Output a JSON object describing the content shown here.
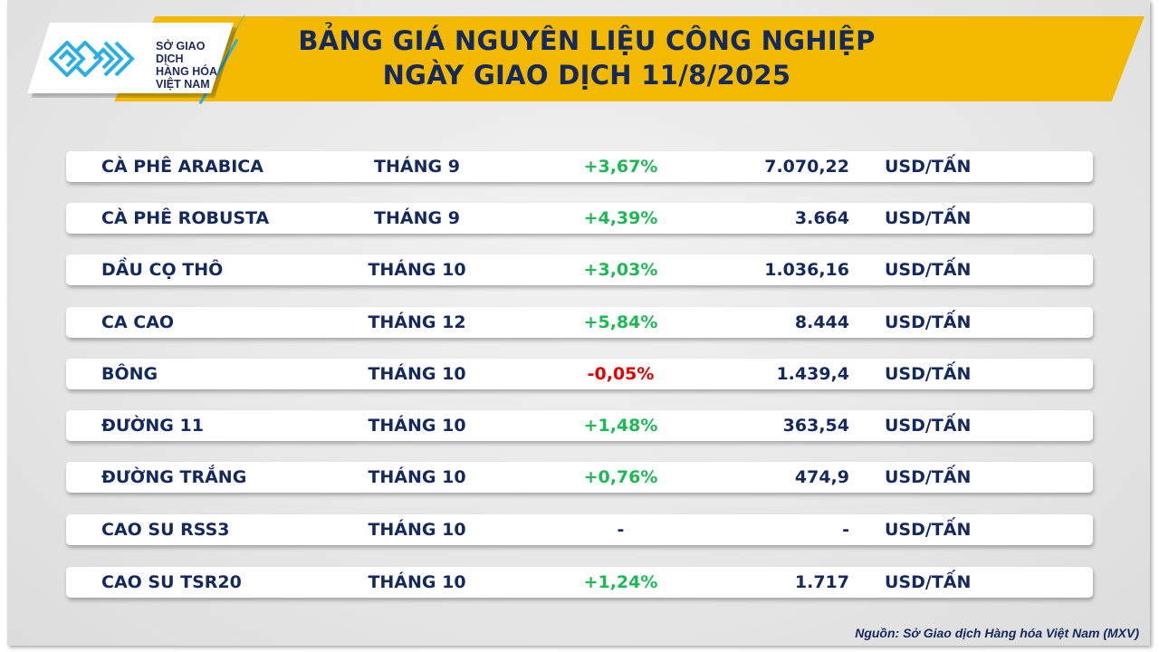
{
  "logo": {
    "lines": [
      "SỞ GIAO DỊCH",
      "HÀNG HÓA",
      "VIỆT NAM"
    ],
    "tm": "™"
  },
  "title": {
    "line1": "BẢNG GIÁ NGUYÊN LIỆU CÔNG NGHIỆP",
    "line2": "NGÀY GIAO DỊCH 11/8/2025"
  },
  "colors": {
    "banner": "#f2b900",
    "text": "#14295e",
    "up": "#1db954",
    "down": "#e60000",
    "logo_blue": "#2aaee6"
  },
  "rows": [
    {
      "name": "CÀ PHÊ ARABICA",
      "month": "THÁNG 9",
      "change": "+3,67%",
      "dir": "up",
      "price": "7.070,22",
      "unit": "USD/TẤN"
    },
    {
      "name": "CÀ PHÊ ROBUSTA",
      "month": "THÁNG 9",
      "change": "+4,39%",
      "dir": "up",
      "price": "3.664",
      "unit": "USD/TẤN"
    },
    {
      "name": "DẦU CỌ THÔ",
      "month": "THÁNG 10",
      "change": "+3,03%",
      "dir": "up",
      "price": "1.036,16",
      "unit": "USD/TẤN"
    },
    {
      "name": "CA CAO",
      "month": "THÁNG 12",
      "change": "+5,84%",
      "dir": "up",
      "price": "8.444",
      "unit": "USD/TẤN"
    },
    {
      "name": "BÔNG",
      "month": "THÁNG 10",
      "change": "-0,05%",
      "dir": "down",
      "price": "1.439,4",
      "unit": "USD/TẤN"
    },
    {
      "name": "ĐƯỜNG 11",
      "month": "THÁNG 10",
      "change": "+1,48%",
      "dir": "up",
      "price": "363,54",
      "unit": "USD/TẤN"
    },
    {
      "name": "ĐƯỜNG TRẮNG",
      "month": "THÁNG 10",
      "change": "+0,76%",
      "dir": "up",
      "price": "474,9",
      "unit": "USD/TẤN"
    },
    {
      "name": "CAO SU RSS3",
      "month": "THÁNG 10",
      "change": "-",
      "dir": "none",
      "price": "-",
      "unit": "USD/TẤN"
    },
    {
      "name": "CAO SU TSR20",
      "month": "THÁNG 10",
      "change": "+1,24%",
      "dir": "up",
      "price": "1.717",
      "unit": "USD/TẤN"
    }
  ],
  "source": "Nguồn: Sở Giao dịch Hàng hóa Việt Nam (MXV)"
}
